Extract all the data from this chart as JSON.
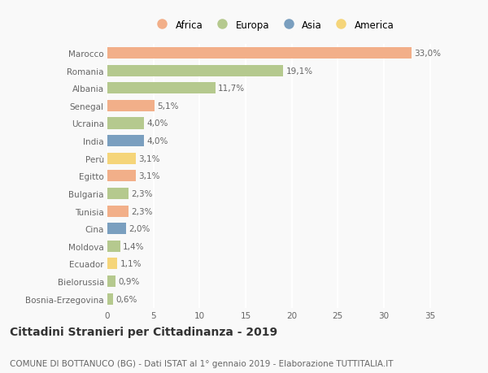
{
  "countries": [
    "Marocco",
    "Romania",
    "Albania",
    "Senegal",
    "Ucraina",
    "India",
    "Perù",
    "Egitto",
    "Bulgaria",
    "Tunisia",
    "Cina",
    "Moldova",
    "Ecuador",
    "Bielorussia",
    "Bosnia-Erzegovina"
  ],
  "values": [
    33.0,
    19.1,
    11.7,
    5.1,
    4.0,
    4.0,
    3.1,
    3.1,
    2.3,
    2.3,
    2.0,
    1.4,
    1.1,
    0.9,
    0.6
  ],
  "labels": [
    "33,0%",
    "19,1%",
    "11,7%",
    "5,1%",
    "4,0%",
    "4,0%",
    "3,1%",
    "3,1%",
    "2,3%",
    "2,3%",
    "2,0%",
    "1,4%",
    "1,1%",
    "0,9%",
    "0,6%"
  ],
  "continents": [
    "Africa",
    "Europa",
    "Europa",
    "Africa",
    "Europa",
    "Asia",
    "America",
    "Africa",
    "Europa",
    "Africa",
    "Asia",
    "Europa",
    "America",
    "Europa",
    "Europa"
  ],
  "colors": {
    "Africa": "#F2AF89",
    "Europa": "#B5C98E",
    "Asia": "#7A9FBF",
    "America": "#F5D57A"
  },
  "legend_order": [
    "Africa",
    "Europa",
    "Asia",
    "America"
  ],
  "legend_colors": [
    "#F2AF89",
    "#B5C98E",
    "#7A9FBF",
    "#F5D57A"
  ],
  "xlim": [
    0,
    36
  ],
  "xticks": [
    0,
    5,
    10,
    15,
    20,
    25,
    30,
    35
  ],
  "title": "Cittadini Stranieri per Cittadinanza - 2019",
  "subtitle": "COMUNE DI BOTTANUCO (BG) - Dati ISTAT al 1° gennaio 2019 - Elaborazione TUTTITALIA.IT",
  "bg_color": "#f9f9f9",
  "bar_height": 0.65,
  "label_fontsize": 7.5,
  "tick_fontsize": 7.5,
  "title_fontsize": 10,
  "subtitle_fontsize": 7.5
}
